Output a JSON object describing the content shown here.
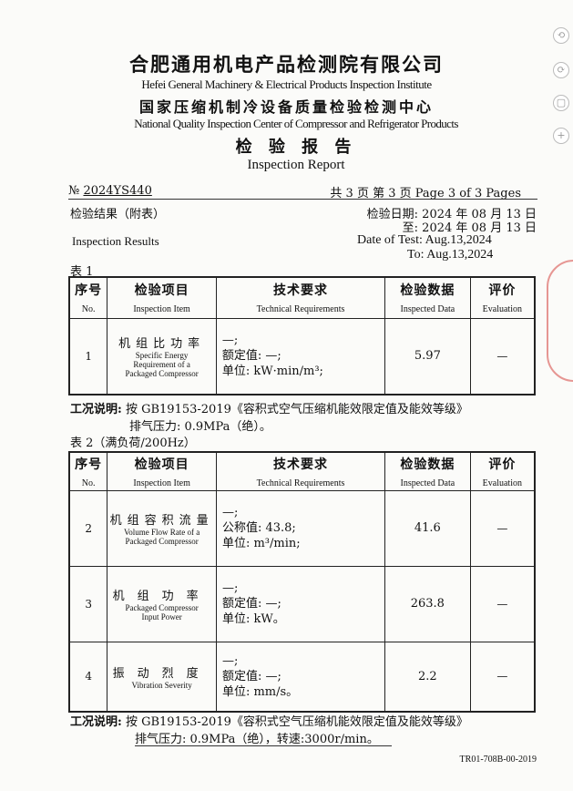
{
  "header": {
    "org_zh": "合肥通用机电产品检测院有限公司",
    "org_en": "Hefei General Machinery & Electrical Products Inspection Institute",
    "center_zh": "国家压缩机制冷设备质量检验检测中心",
    "center_en": "National Quality Inspection Center of Compressor and Refrigerator Products",
    "report_zh": "检 验 报 告",
    "report_en": "Inspection Report"
  },
  "meta": {
    "number_prefix": "№",
    "number": "2024YS440",
    "pages": "共 3 页 第 3 页 Page 3 of 3 Pages",
    "results_zh": "检验结果（附表）",
    "results_en": "Inspection Results",
    "date_zh": "检验日期: 2024 年 08 月 13 日",
    "date_to_zh": "至: 2024 年 08 月 13 日",
    "date_en": "Date of Test: Aug.13,2024",
    "date_to_en": "To: Aug.13,2024"
  },
  "columns": [
    {
      "zh": "序号",
      "en": "No."
    },
    {
      "zh": "检验项目",
      "en": "Inspection Item"
    },
    {
      "zh": "技术要求",
      "en": "Technical Requirements"
    },
    {
      "zh": "检验数据",
      "en": "Inspected Data"
    },
    {
      "zh": "评价",
      "en": "Evaluation"
    }
  ],
  "table1": {
    "label": "表 1",
    "rows": [
      {
        "no": "1",
        "item_zh": "机组比功率",
        "item_en": "Specific Energy Requirement of a Packaged Compressor",
        "req": [
          "—;",
          "额定值: —;",
          "单位: kW·min/m³;"
        ],
        "data": "5.97",
        "eval": "—"
      }
    ],
    "note_label": "工况说明:",
    "note_1": "按 GB19153-2019《容积式空气压缩机能效限定值及能效等级》",
    "note_2": "排气压力: 0.9MPa（绝）。"
  },
  "table2": {
    "label": "表 2（满负荷/200Hz）",
    "rows": [
      {
        "no": "2",
        "item_zh": "机组容积流量",
        "item_en": "Volume Flow Rate of a Packaged Compressor",
        "req": [
          "—;",
          "公称值: 43.8;",
          "单位: m³/min;"
        ],
        "data": "41.6",
        "eval": "—"
      },
      {
        "no": "3",
        "item_zh": "机组功率",
        "item_en": "Packaged Compressor Input Power",
        "req": [
          "—;",
          "额定值: —;",
          "单位: kW。"
        ],
        "data": "263.8",
        "eval": "—"
      },
      {
        "no": "4",
        "item_zh": "振动烈度",
        "item_en": "Vibration Severity",
        "req": [
          "—;",
          "额定值: —;",
          "单位: mm/s。"
        ],
        "data": "2.2",
        "eval": "—"
      }
    ],
    "note_label": "工况说明:",
    "note_1": "按 GB19153-2019《容积式空气压缩机能效限定值及能效等级》",
    "note_2": "排气压力: 0.9MPa（绝），转速:3000r/min。"
  },
  "footer": {
    "code": "TR01-708B-00-2019"
  },
  "stamp_color": "#d9534f"
}
